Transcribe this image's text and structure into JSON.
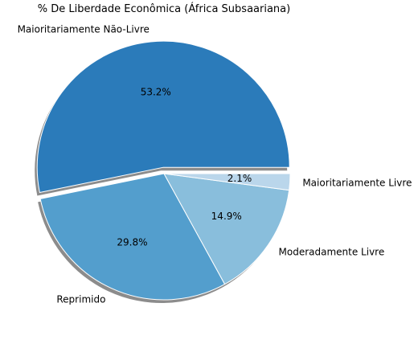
{
  "chart_data": {
    "type": "pie",
    "title": "% De Liberdade Econômica (África Subsaariana)",
    "slices": [
      {
        "label": "Maioritariamente Não-Livre",
        "value": 53.2,
        "pct_label": "53.2%",
        "color": "#2b7bba",
        "exploded": true
      },
      {
        "label": "Reprimido",
        "value": 29.8,
        "pct_label": "29.8%",
        "color": "#539ecd",
        "exploded": false
      },
      {
        "label": "Moderadamente Livre",
        "value": 14.9,
        "pct_label": "14.9%",
        "color": "#89bedc",
        "exploded": false
      },
      {
        "label": "Maioritariamente Livre",
        "value": 2.1,
        "pct_label": "2.1%",
        "color": "#bad6eb",
        "exploded": false
      }
    ],
    "start_angle_deg": 0,
    "direction": "counterclockwise",
    "shadow": true,
    "legend": "none"
  }
}
